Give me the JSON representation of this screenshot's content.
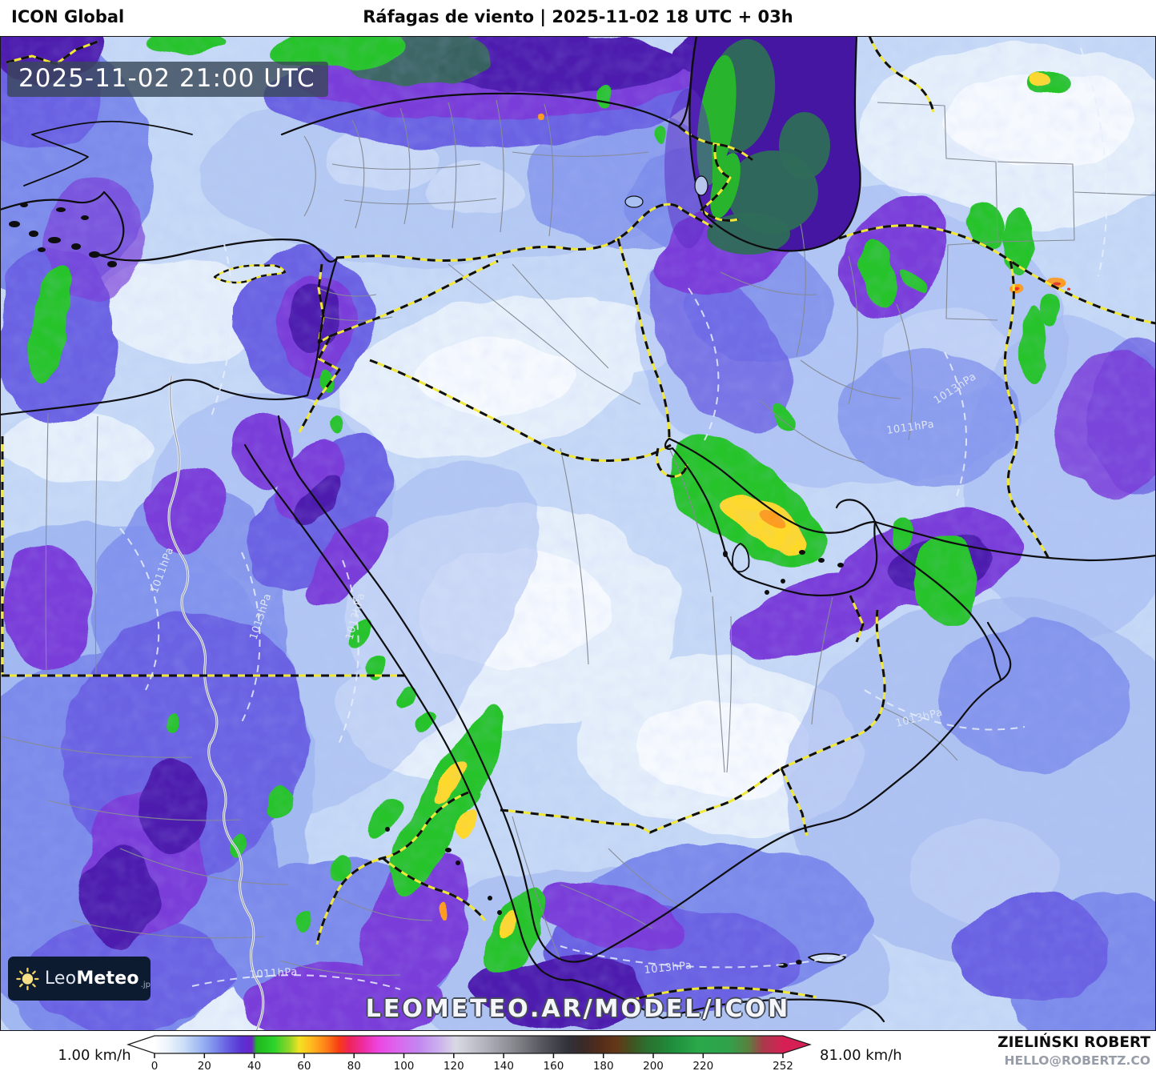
{
  "header": {
    "model_label": "ICON Global",
    "title": "Ráfagas de viento | 2025-11-02 18 UTC + 03h"
  },
  "map": {
    "timestamp": "2025-11-02 21:00 UTC",
    "watermark": "LEOMETEO.AR/MODEL/ICON",
    "logo": {
      "brand_prefix": "Leo",
      "brand_suffix": "Meteo",
      "tld": ".jp"
    },
    "isobar_labels": [
      "1011hPa",
      "1013hPa",
      "1013hPa",
      "1011hPa",
      "1013hPa",
      "1013hPa",
      "1013hPa",
      "1011hPa"
    ]
  },
  "footer": {
    "credit_name": "ZIELIŃSKI ROBERT",
    "credit_email": "HELLO@ROBERTZ.CO",
    "scale": {
      "min_label": "1.00 km/h",
      "max_label": "81.00 km/h",
      "unit": "km/h",
      "max_value": 252,
      "ticks": [
        0,
        20,
        40,
        60,
        80,
        100,
        120,
        140,
        160,
        180,
        200,
        220,
        252
      ],
      "stops": [
        [
          0,
          "#ffffff"
        ],
        [
          6,
          "#e9f2fb"
        ],
        [
          12,
          "#cadcf7"
        ],
        [
          18,
          "#a0baf2"
        ],
        [
          24,
          "#7d8eec"
        ],
        [
          30,
          "#6458e0"
        ],
        [
          35,
          "#5a32d2"
        ],
        [
          39,
          "#6b24c8"
        ],
        [
          41,
          "#1fb81f"
        ],
        [
          48,
          "#2ed32a"
        ],
        [
          54,
          "#90d629"
        ],
        [
          58,
          "#f2e322"
        ],
        [
          63,
          "#ffb81e"
        ],
        [
          69,
          "#ff7d18"
        ],
        [
          74,
          "#f83c14"
        ],
        [
          78,
          "#ee2458"
        ],
        [
          84,
          "#ee2da4"
        ],
        [
          90,
          "#ec46e2"
        ],
        [
          98,
          "#d969ee"
        ],
        [
          106,
          "#c287f0"
        ],
        [
          114,
          "#ccb0ee"
        ],
        [
          121,
          "#d9d9e4"
        ],
        [
          132,
          "#b4b4bf"
        ],
        [
          144,
          "#88888f"
        ],
        [
          156,
          "#54545c"
        ],
        [
          166,
          "#31313a"
        ],
        [
          172,
          "#3a2a28"
        ],
        [
          178,
          "#512c1b"
        ],
        [
          185,
          "#653618"
        ],
        [
          191,
          "#44511f"
        ],
        [
          197,
          "#2c6e2e"
        ],
        [
          207,
          "#1f8c3a"
        ],
        [
          218,
          "#2aa94a"
        ],
        [
          230,
          "#2fa24a"
        ],
        [
          238,
          "#59813f"
        ],
        [
          244,
          "#a93a4a"
        ],
        [
          252,
          "#d62055"
        ]
      ]
    }
  }
}
